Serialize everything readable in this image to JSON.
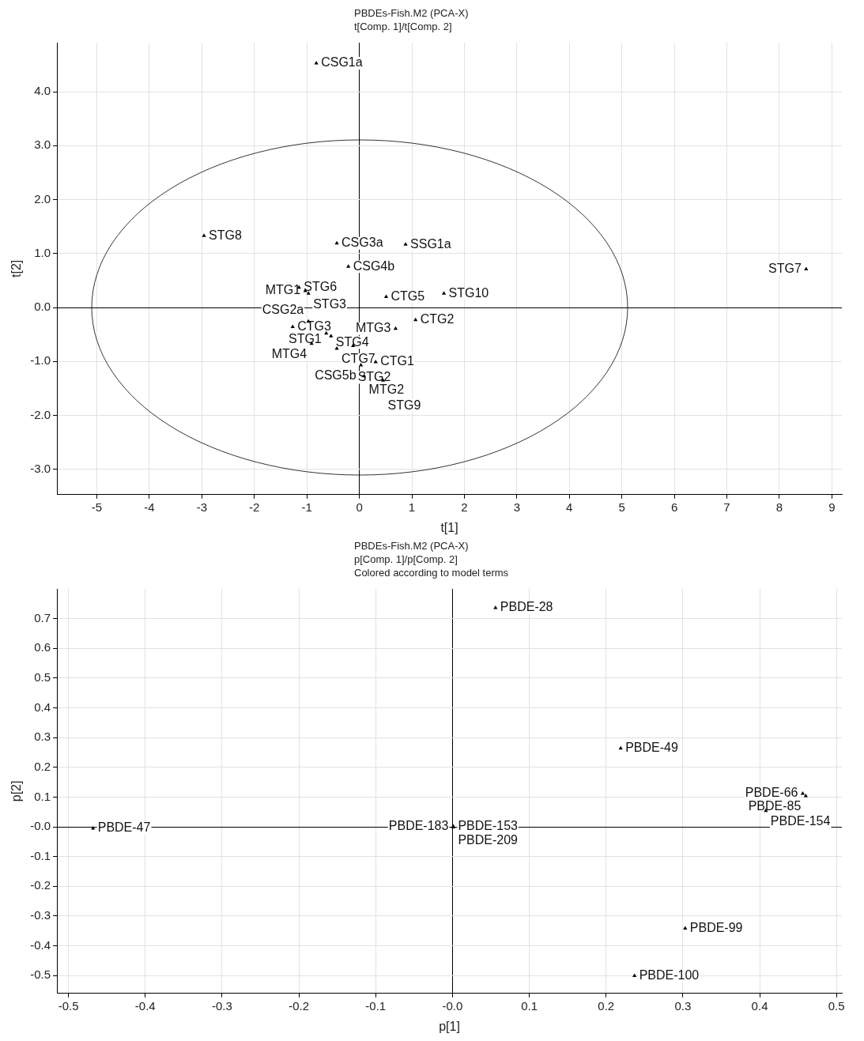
{
  "chart_data": [
    {
      "type": "scatter",
      "title": "PBDEs-Fish.M2 (PCA-X)",
      "subtitle": "t[Comp. 1]/t[Comp. 2]",
      "xlabel": "t[1]",
      "ylabel": "t[2]",
      "marker": "triangle",
      "grid": true,
      "legend": false,
      "series": [
        {
          "color": "#000000",
          "x": [
            -0.82,
            -2.96,
            -0.43,
            0.88,
            -0.21,
            -1.15,
            -1.03,
            -0.97,
            0.51,
            1.61,
            8.51,
            1.07,
            0.69,
            -1.27,
            -0.97,
            -0.63,
            -0.54,
            -0.91,
            -0.43,
            -0.12,
            0.31,
            0.03,
            0.09,
            0.45
          ],
          "values": [
            4.53,
            1.33,
            1.19,
            1.17,
            0.76,
            0.37,
            0.31,
            0.26,
            0.2,
            0.26,
            0.71,
            -0.23,
            -0.39,
            -0.36,
            -0.26,
            -0.48,
            -0.53,
            -0.67,
            -0.76,
            -0.71,
            -1.01,
            -1.07,
            -1.27,
            -1.35
          ]
        }
      ],
      "annotations": [
        {
          "text": "CSG1a",
          "x": -0.82,
          "y": 4.53
        },
        {
          "text": "STG8",
          "x": -2.96,
          "y": 1.33
        },
        {
          "text": "CSG3a",
          "x": -0.43,
          "y": 1.19
        },
        {
          "text": "SSG1a",
          "x": 0.88,
          "y": 1.17
        },
        {
          "text": "CSG4b",
          "x": -0.21,
          "y": 0.76
        },
        {
          "text": "STG6",
          "x": -1.15,
          "y": 0.37
        },
        {
          "text": "MTG1",
          "x": -1.03,
          "y": 0.31
        },
        {
          "text": "STG3",
          "x": -0.97,
          "y": 0.26
        },
        {
          "text": "CTG5",
          "x": 0.51,
          "y": 0.2
        },
        {
          "text": "STG10",
          "x": 1.61,
          "y": 0.26
        },
        {
          "text": "STG7",
          "x": 8.51,
          "y": 0.71
        },
        {
          "text": "CTG2",
          "x": 1.07,
          "y": -0.23
        },
        {
          "text": "MTG3",
          "x": 0.69,
          "y": -0.39
        },
        {
          "text": "CTG3",
          "x": -1.27,
          "y": -0.36
        },
        {
          "text": "CSG2a",
          "x": -0.97,
          "y": -0.26
        },
        {
          "text": "STG1",
          "x": -0.63,
          "y": -0.48
        },
        {
          "text": "STG4",
          "x": -0.54,
          "y": -0.53
        },
        {
          "text": "MTG4",
          "x": -0.91,
          "y": -0.67
        },
        {
          "text": "CTG7",
          "x": -0.43,
          "y": -0.76
        },
        {
          "text": "STG2",
          "x": -0.12,
          "y": -0.71
        },
        {
          "text": "CTG1",
          "x": 0.31,
          "y": -1.01
        },
        {
          "text": "CSG5b",
          "x": 0.03,
          "y": -1.07
        },
        {
          "text": "MTG2",
          "x": 0.09,
          "y": -1.27
        },
        {
          "text": "STG9",
          "x": 0.45,
          "y": -1.35
        }
      ],
      "xlim": [
        -5.76,
        9.19
      ],
      "ylim": [
        -3.47,
        4.91
      ],
      "xticks": [
        -5,
        -4,
        -3,
        -2,
        -1,
        0,
        1,
        2,
        3,
        4,
        5,
        6,
        7,
        8,
        9
      ],
      "yticks": [
        {
          "value": -3,
          "label": "-3.0"
        },
        {
          "value": -2,
          "label": "-2.0"
        },
        {
          "value": -1,
          "label": "-1.0"
        },
        {
          "value": 0,
          "label": "0.0"
        },
        {
          "value": 1,
          "label": "1.0"
        },
        {
          "value": 2,
          "label": "2.0"
        },
        {
          "value": 3,
          "label": "3.0"
        },
        {
          "value": 4,
          "label": "4.0"
        }
      ]
    },
    {
      "type": "scatter",
      "title": "PBDEs-Fish.M2 (PCA-X)",
      "subtitle": "p[Comp. 1]/p[Comp. 2]",
      "xlabel": "p[1]",
      "ylabel": "p[2]",
      "marker": "triangle",
      "grid": true,
      "legend": false,
      "series": [
        {
          "color": "#000000",
          "x": [
            0.056,
            0.219,
            0.456,
            0.46,
            0.408,
            -0.468,
            0.001,
            0.001,
            0.001,
            0.303,
            0.237
          ],
          "values": [
            0.736,
            0.264,
            0.112,
            0.104,
            0.054,
            -0.005,
            0,
            0,
            0,
            -0.341,
            -0.501
          ]
        }
      ],
      "annotations": [
        "Colored according to model terms",
        {
          "text": "PBDE-28",
          "x": 0.056,
          "y": 0.736
        },
        {
          "text": "PBDE-49",
          "x": 0.219,
          "y": 0.264
        },
        {
          "text": "PBDE-66",
          "x": 0.456,
          "y": 0.112
        },
        {
          "text": "PBDE-85",
          "x": 0.46,
          "y": 0.104
        },
        {
          "text": "PBDE-154",
          "x": 0.408,
          "y": 0.054
        },
        {
          "text": "PBDE-47",
          "x": -0.468,
          "y": -0.005
        },
        {
          "text": "PBDE-153",
          "x": 0.001,
          "y": 0
        },
        {
          "text": "PBDE-183",
          "x": 0.001,
          "y": 0
        },
        {
          "text": "PBDE-209",
          "x": 0.001,
          "y": 0
        },
        {
          "text": "PBDE-99",
          "x": 0.303,
          "y": -0.341
        },
        {
          "text": "PBDE-100",
          "x": 0.237,
          "y": -0.501
        }
      ],
      "xlim": [
        -0.515,
        0.507
      ],
      "ylim": [
        -0.56,
        0.8
      ],
      "xticks": [
        -0.5,
        -0.4,
        -0.3,
        -0.2,
        -0.1,
        {
          "value": 0,
          "label": "-0.0"
        },
        0.1,
        0.2,
        0.3,
        0.4,
        0.5
      ],
      "yticks": [
        -0.5,
        -0.4,
        -0.3,
        -0.2,
        -0.1,
        {
          "value": 0,
          "label": "-0.0"
        },
        0.1,
        0.2,
        0.3,
        0.4,
        0.5,
        0.6,
        0.7
      ]
    }
  ]
}
